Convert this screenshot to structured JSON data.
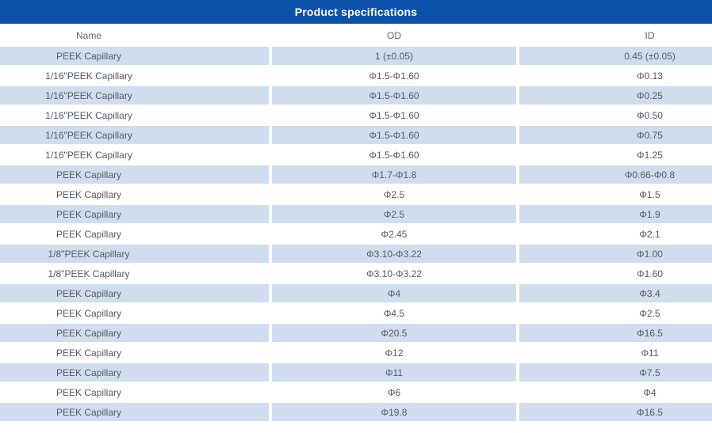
{
  "title": "Product specifications",
  "colors": {
    "title_bar_bg": "#0c51a9",
    "title_text": "#ffffff",
    "row_band_bg": "#cfddee",
    "cell_text": "#545a61",
    "header_text": "#63686e"
  },
  "table": {
    "columns": [
      "Name",
      "OD",
      "ID"
    ],
    "rows": [
      [
        "PEEK Capillary",
        "1  (±0.05)",
        "0.45  (±0.05)"
      ],
      [
        "1/16\"PEEK Capillary",
        "Φ1.5-Φ1.60",
        "Φ0.13"
      ],
      [
        "1/16\"PEEK Capillary",
        "Φ1.5-Φ1.60",
        "Φ0.25"
      ],
      [
        "1/16\"PEEK Capillary",
        "Φ1.5-Φ1.60",
        "Φ0.50"
      ],
      [
        "1/16\"PEEK Capillary",
        "Φ1.5-Φ1.60",
        "Φ0.75"
      ],
      [
        "1/16\"PEEK Capillary",
        "Φ1.5-Φ1.60",
        "Φ1.25"
      ],
      [
        "PEEK Capillary",
        "Φ1.7-Φ1.8",
        "Φ0.66-Φ0.8"
      ],
      [
        "PEEK Capillary",
        "Φ2.5",
        "Φ1.5"
      ],
      [
        "PEEK Capillary",
        "Φ2.5",
        "Φ1.9"
      ],
      [
        "PEEK Capillary",
        "Φ2.45",
        "Φ2.1"
      ],
      [
        "1/8\"PEEK Capillary",
        "Φ3.10-Φ3.22",
        "Φ1.00"
      ],
      [
        "1/8\"PEEK Capillary",
        "Φ3.10-Φ3.22",
        "Φ1.60"
      ],
      [
        "PEEK Capillary",
        "Φ4",
        "Φ3.4"
      ],
      [
        "PEEK Capillary",
        "Φ4.5",
        "Φ2.5"
      ],
      [
        "PEEK Capillary",
        "Φ20.5",
        "Φ16.5"
      ],
      [
        "PEEK Capillary",
        "Φ12",
        "Φ11"
      ],
      [
        "PEEK Capillary",
        "Φ11",
        "Φ7.5"
      ],
      [
        "PEEK Capillary",
        "Φ6",
        "Φ4"
      ],
      [
        "PEEK Capillary",
        "Φ19.8",
        "Φ16.5"
      ]
    ]
  }
}
